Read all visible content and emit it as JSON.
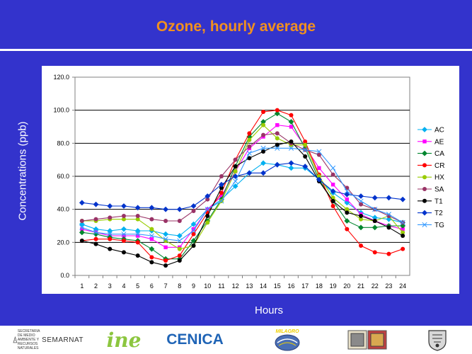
{
  "slide": {
    "title": "Ozone, hourly average",
    "colors": {
      "background": "#3333cc",
      "title": "#f09020",
      "plot_bg": "#ffffff"
    }
  },
  "chart_data": {
    "type": "line",
    "title": "Ozone, hourly average",
    "xlabel": "Hours",
    "ylabel": "Concentrations (ppb)",
    "ylim": [
      0,
      120
    ],
    "yticks": [
      "0.0",
      "20.0",
      "40.0",
      "60.0",
      "80.0",
      "100.0",
      "120.0"
    ],
    "grid": "horizontal",
    "legend_position": "right",
    "x": [
      1,
      2,
      3,
      4,
      5,
      6,
      7,
      8,
      9,
      10,
      11,
      12,
      13,
      14,
      15,
      16,
      17,
      18,
      19,
      20,
      21,
      22,
      23,
      24
    ],
    "series": [
      {
        "name": "AC",
        "color": "#00b0f0",
        "marker": "diamond",
        "values": [
          31,
          28,
          27,
          28,
          27,
          27,
          25,
          24,
          31,
          40,
          46,
          54,
          62,
          68,
          67,
          65,
          65,
          58,
          50,
          44,
          38,
          35,
          34,
          32
        ]
      },
      {
        "name": "AE",
        "color": "#ff00ff",
        "marker": "square",
        "values": [
          28,
          26,
          24,
          24,
          24,
          22,
          17,
          17,
          28,
          40,
          48,
          63,
          77,
          84,
          91,
          90,
          78,
          65,
          55,
          46,
          37,
          33,
          30,
          28
        ]
      },
      {
        "name": "CA",
        "color": "#00862e",
        "marker": "diamond",
        "values": [
          26,
          25,
          23,
          22,
          21,
          16,
          10,
          10,
          21,
          33,
          46,
          66,
          84,
          93,
          98,
          93,
          77,
          58,
          45,
          33,
          29,
          29,
          30,
          30
        ]
      },
      {
        "name": "CR",
        "color": "#ff0000",
        "marker": "circle",
        "values": [
          21,
          22,
          22,
          21,
          20,
          11,
          9,
          12,
          25,
          38,
          50,
          70,
          86,
          99,
          100,
          97,
          81,
          61,
          42,
          28,
          18,
          14,
          13,
          16
        ]
      },
      {
        "name": "HX",
        "color": "#99cc00",
        "marker": "circle",
        "values": [
          33,
          33,
          34,
          34,
          34,
          28,
          21,
          16,
          18,
          32,
          45,
          63,
          82,
          91,
          83,
          79,
          79,
          60,
          47,
          40,
          34,
          33,
          36,
          26
        ]
      },
      {
        "name": "SA",
        "color": "#993366",
        "marker": "circle",
        "values": [
          33,
          34,
          35,
          36,
          36,
          34,
          33,
          33,
          39,
          46,
          60,
          70,
          78,
          85,
          86,
          80,
          76,
          73,
          61,
          53,
          43,
          40,
          36,
          32
        ]
      },
      {
        "name": "T1",
        "color": "#000000",
        "marker": "circle",
        "values": [
          21,
          19,
          16,
          14,
          12,
          8,
          6,
          9,
          18,
          36,
          53,
          66,
          71,
          75,
          79,
          81,
          72,
          57,
          45,
          38,
          36,
          33,
          29,
          24
        ]
      },
      {
        "name": "T2",
        "color": "#0033cc",
        "marker": "diamond",
        "values": [
          44,
          43,
          42,
          42,
          41,
          41,
          40,
          40,
          42,
          48,
          55,
          60,
          62,
          62,
          67,
          68,
          66,
          58,
          51,
          49,
          48,
          47,
          47,
          46
        ]
      },
      {
        "name": "TG",
        "color": "#3399ff",
        "marker": "x",
        "values": [
          29,
          26,
          25,
          25,
          25,
          24,
          22,
          21,
          27,
          40,
          45,
          57,
          74,
          77,
          77,
          77,
          76,
          75,
          65,
          51,
          45,
          40,
          37,
          32
        ]
      }
    ]
  },
  "logos": {
    "semarnat_small": "SECRETARIA DE MEDIO AMBIENTE Y RECURSOS NATURALES",
    "semarnat": "SEMARNAT",
    "ine": "ine",
    "cenica": "CENICA",
    "milagro": "MILAGRO"
  }
}
